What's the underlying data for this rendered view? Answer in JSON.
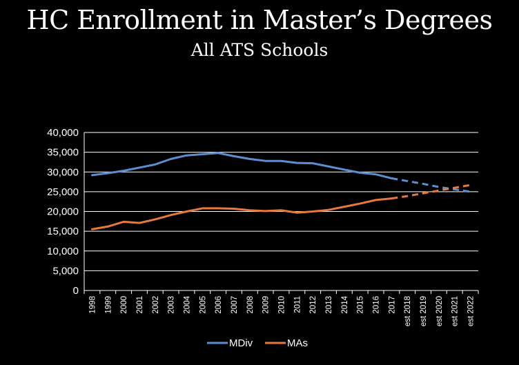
{
  "chart_data": {
    "type": "line",
    "title": "HC Enrollment in Master’s Degrees",
    "subtitle": "All ATS Schools",
    "xlabel": "",
    "ylabel": "",
    "categories": [
      "1998",
      "1999",
      "2000",
      "2001",
      "2002",
      "2003",
      "2004",
      "2005",
      "2006",
      "2007",
      "2008",
      "2009",
      "2010",
      "2011",
      "2012",
      "2013",
      "2014",
      "2015",
      "2016",
      "2017",
      "est 2018",
      "est 2019",
      "est 2020",
      "est 2021",
      "est 2022"
    ],
    "ylim": [
      0,
      40000
    ],
    "yticks": [
      "0",
      "5,000",
      "10,000",
      "15,000",
      "20,000",
      "25,000",
      "30,000",
      "35,000",
      "40,000"
    ],
    "yticks_values": [
      0,
      5000,
      10000,
      15000,
      20000,
      25000,
      30000,
      35000,
      40000
    ],
    "grid": true,
    "legend_position": "bottom",
    "estimated_from_category": "est 2018",
    "series": [
      {
        "name": "MDiv",
        "color": "#5b8fd1",
        "values": [
          29200,
          29700,
          30300,
          31100,
          31900,
          33300,
          34200,
          34500,
          34800,
          34000,
          33300,
          32800,
          32800,
          32300,
          32200,
          31400,
          30600,
          29800,
          29400,
          28400,
          27700,
          27000,
          26200,
          25600,
          25000
        ]
      },
      {
        "name": "MAs",
        "color": "#e8793a",
        "values": [
          15500,
          16200,
          17400,
          17100,
          18000,
          19100,
          20000,
          20800,
          20800,
          20700,
          20300,
          20100,
          20300,
          19700,
          20000,
          20400,
          21200,
          22000,
          22900,
          23300,
          23900,
          24600,
          25300,
          26000,
          26700
        ]
      }
    ]
  }
}
